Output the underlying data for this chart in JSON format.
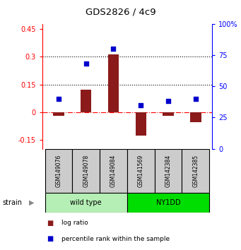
{
  "title": "GDS2826 / 4c9",
  "samples": [
    "GSM149076",
    "GSM149078",
    "GSM149084",
    "GSM141569",
    "GSM142384",
    "GSM142385"
  ],
  "log_ratio": [
    -0.02,
    0.12,
    0.315,
    -0.13,
    -0.02,
    -0.055
  ],
  "percentile_rank": [
    40,
    68,
    80,
    35,
    38,
    40
  ],
  "group_wild_color": "#b5efb5",
  "group_ny1dd_color": "#00dd00",
  "ylim_left": [
    -0.2,
    0.48
  ],
  "ylim_right": [
    0,
    100
  ],
  "yticks_left": [
    -0.15,
    0.0,
    0.15,
    0.3,
    0.45
  ],
  "yticks_right": [
    0,
    25,
    50,
    75,
    100
  ],
  "hlines": [
    0.15,
    0.3
  ],
  "bar_color": "#8b1a1a",
  "dot_color": "#0000cc",
  "background_color": "#ffffff",
  "label_log_ratio": "log ratio",
  "label_percentile": "percentile rank within the sample",
  "bar_width": 0.4
}
